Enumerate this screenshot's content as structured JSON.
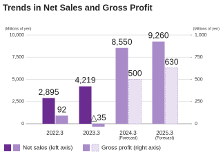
{
  "chart_data": {
    "type": "bar",
    "title": "Trends in Net Sales and Gross Profit",
    "y_unit_label": "(Millions of yen)",
    "y2_unit_label": "(Millions of yen)",
    "categories": [
      "2022.3",
      "2023.3",
      "2024.3",
      "2025.3"
    ],
    "category_notes": [
      null,
      null,
      "(Forecast)",
      "(Forecast)"
    ],
    "forecast": [
      false,
      false,
      true,
      true
    ],
    "ylim": [
      0,
      10000
    ],
    "yticks": [
      0,
      {
        "value": 2500,
        "label": "2,500"
      },
      {
        "value": 5000,
        "label": "5,000"
      },
      {
        "value": 7500,
        "label": "7,500"
      },
      {
        "value": 10000,
        "label": "10,000"
      }
    ],
    "y2lim": [
      0,
      1000
    ],
    "y2ticks": [
      0,
      250,
      500,
      750,
      {
        "value": 1000,
        "label": "1,000"
      }
    ],
    "grid": true,
    "series": [
      {
        "name": "Net sales (left axis)",
        "color": "#6b2c91",
        "forecast_color": "#a98bc9",
        "values": [
          2895,
          4219,
          8550,
          9260
        ],
        "value_labels": [
          "2,895",
          "4,219",
          "8,550",
          "9,260"
        ]
      },
      {
        "name": "Gross profit (right axis)",
        "axis": "y2",
        "color": "#a98bc9",
        "forecast_color": "#e9e1f2",
        "values": [
          92,
          -35,
          500,
          630
        ],
        "value_labels": [
          "92",
          "△35",
          "500",
          "630"
        ]
      }
    ]
  }
}
